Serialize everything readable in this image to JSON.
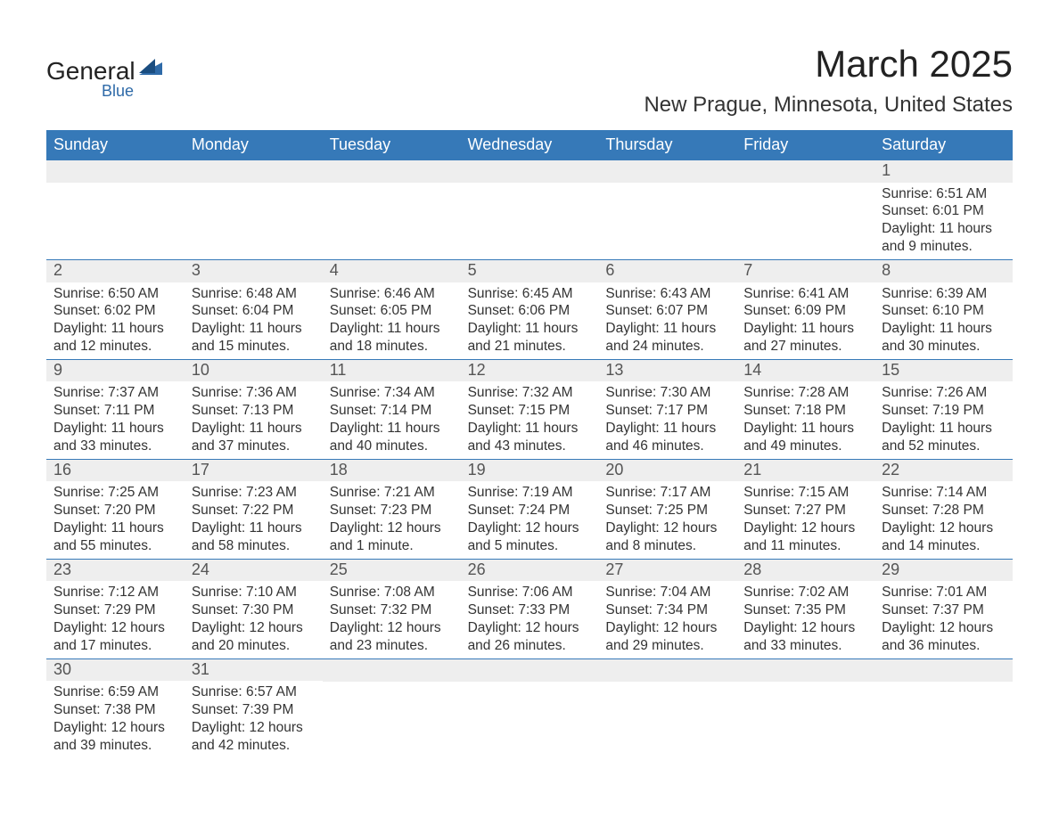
{
  "brand": {
    "name": "General",
    "sub": "Blue"
  },
  "title": "March 2025",
  "location": "New Prague, Minnesota, United States",
  "colors": {
    "header_bg": "#3679b8",
    "header_text": "#ffffff",
    "num_bg": "#eeeeee",
    "border": "#3679b8",
    "text": "#333333",
    "brand_accent": "#2e6aa8"
  },
  "days_of_week": [
    "Sunday",
    "Monday",
    "Tuesday",
    "Wednesday",
    "Thursday",
    "Friday",
    "Saturday"
  ],
  "weeks": [
    [
      null,
      null,
      null,
      null,
      null,
      null,
      {
        "n": "1",
        "sunrise": "Sunrise: 6:51 AM",
        "sunset": "Sunset: 6:01 PM",
        "dl1": "Daylight: 11 hours",
        "dl2": "and 9 minutes."
      }
    ],
    [
      {
        "n": "2",
        "sunrise": "Sunrise: 6:50 AM",
        "sunset": "Sunset: 6:02 PM",
        "dl1": "Daylight: 11 hours",
        "dl2": "and 12 minutes."
      },
      {
        "n": "3",
        "sunrise": "Sunrise: 6:48 AM",
        "sunset": "Sunset: 6:04 PM",
        "dl1": "Daylight: 11 hours",
        "dl2": "and 15 minutes."
      },
      {
        "n": "4",
        "sunrise": "Sunrise: 6:46 AM",
        "sunset": "Sunset: 6:05 PM",
        "dl1": "Daylight: 11 hours",
        "dl2": "and 18 minutes."
      },
      {
        "n": "5",
        "sunrise": "Sunrise: 6:45 AM",
        "sunset": "Sunset: 6:06 PM",
        "dl1": "Daylight: 11 hours",
        "dl2": "and 21 minutes."
      },
      {
        "n": "6",
        "sunrise": "Sunrise: 6:43 AM",
        "sunset": "Sunset: 6:07 PM",
        "dl1": "Daylight: 11 hours",
        "dl2": "and 24 minutes."
      },
      {
        "n": "7",
        "sunrise": "Sunrise: 6:41 AM",
        "sunset": "Sunset: 6:09 PM",
        "dl1": "Daylight: 11 hours",
        "dl2": "and 27 minutes."
      },
      {
        "n": "8",
        "sunrise": "Sunrise: 6:39 AM",
        "sunset": "Sunset: 6:10 PM",
        "dl1": "Daylight: 11 hours",
        "dl2": "and 30 minutes."
      }
    ],
    [
      {
        "n": "9",
        "sunrise": "Sunrise: 7:37 AM",
        "sunset": "Sunset: 7:11 PM",
        "dl1": "Daylight: 11 hours",
        "dl2": "and 33 minutes."
      },
      {
        "n": "10",
        "sunrise": "Sunrise: 7:36 AM",
        "sunset": "Sunset: 7:13 PM",
        "dl1": "Daylight: 11 hours",
        "dl2": "and 37 minutes."
      },
      {
        "n": "11",
        "sunrise": "Sunrise: 7:34 AM",
        "sunset": "Sunset: 7:14 PM",
        "dl1": "Daylight: 11 hours",
        "dl2": "and 40 minutes."
      },
      {
        "n": "12",
        "sunrise": "Sunrise: 7:32 AM",
        "sunset": "Sunset: 7:15 PM",
        "dl1": "Daylight: 11 hours",
        "dl2": "and 43 minutes."
      },
      {
        "n": "13",
        "sunrise": "Sunrise: 7:30 AM",
        "sunset": "Sunset: 7:17 PM",
        "dl1": "Daylight: 11 hours",
        "dl2": "and 46 minutes."
      },
      {
        "n": "14",
        "sunrise": "Sunrise: 7:28 AM",
        "sunset": "Sunset: 7:18 PM",
        "dl1": "Daylight: 11 hours",
        "dl2": "and 49 minutes."
      },
      {
        "n": "15",
        "sunrise": "Sunrise: 7:26 AM",
        "sunset": "Sunset: 7:19 PM",
        "dl1": "Daylight: 11 hours",
        "dl2": "and 52 minutes."
      }
    ],
    [
      {
        "n": "16",
        "sunrise": "Sunrise: 7:25 AM",
        "sunset": "Sunset: 7:20 PM",
        "dl1": "Daylight: 11 hours",
        "dl2": "and 55 minutes."
      },
      {
        "n": "17",
        "sunrise": "Sunrise: 7:23 AM",
        "sunset": "Sunset: 7:22 PM",
        "dl1": "Daylight: 11 hours",
        "dl2": "and 58 minutes."
      },
      {
        "n": "18",
        "sunrise": "Sunrise: 7:21 AM",
        "sunset": "Sunset: 7:23 PM",
        "dl1": "Daylight: 12 hours",
        "dl2": "and 1 minute."
      },
      {
        "n": "19",
        "sunrise": "Sunrise: 7:19 AM",
        "sunset": "Sunset: 7:24 PM",
        "dl1": "Daylight: 12 hours",
        "dl2": "and 5 minutes."
      },
      {
        "n": "20",
        "sunrise": "Sunrise: 7:17 AM",
        "sunset": "Sunset: 7:25 PM",
        "dl1": "Daylight: 12 hours",
        "dl2": "and 8 minutes."
      },
      {
        "n": "21",
        "sunrise": "Sunrise: 7:15 AM",
        "sunset": "Sunset: 7:27 PM",
        "dl1": "Daylight: 12 hours",
        "dl2": "and 11 minutes."
      },
      {
        "n": "22",
        "sunrise": "Sunrise: 7:14 AM",
        "sunset": "Sunset: 7:28 PM",
        "dl1": "Daylight: 12 hours",
        "dl2": "and 14 minutes."
      }
    ],
    [
      {
        "n": "23",
        "sunrise": "Sunrise: 7:12 AM",
        "sunset": "Sunset: 7:29 PM",
        "dl1": "Daylight: 12 hours",
        "dl2": "and 17 minutes."
      },
      {
        "n": "24",
        "sunrise": "Sunrise: 7:10 AM",
        "sunset": "Sunset: 7:30 PM",
        "dl1": "Daylight: 12 hours",
        "dl2": "and 20 minutes."
      },
      {
        "n": "25",
        "sunrise": "Sunrise: 7:08 AM",
        "sunset": "Sunset: 7:32 PM",
        "dl1": "Daylight: 12 hours",
        "dl2": "and 23 minutes."
      },
      {
        "n": "26",
        "sunrise": "Sunrise: 7:06 AM",
        "sunset": "Sunset: 7:33 PM",
        "dl1": "Daylight: 12 hours",
        "dl2": "and 26 minutes."
      },
      {
        "n": "27",
        "sunrise": "Sunrise: 7:04 AM",
        "sunset": "Sunset: 7:34 PM",
        "dl1": "Daylight: 12 hours",
        "dl2": "and 29 minutes."
      },
      {
        "n": "28",
        "sunrise": "Sunrise: 7:02 AM",
        "sunset": "Sunset: 7:35 PM",
        "dl1": "Daylight: 12 hours",
        "dl2": "and 33 minutes."
      },
      {
        "n": "29",
        "sunrise": "Sunrise: 7:01 AM",
        "sunset": "Sunset: 7:37 PM",
        "dl1": "Daylight: 12 hours",
        "dl2": "and 36 minutes."
      }
    ],
    [
      {
        "n": "30",
        "sunrise": "Sunrise: 6:59 AM",
        "sunset": "Sunset: 7:38 PM",
        "dl1": "Daylight: 12 hours",
        "dl2": "and 39 minutes."
      },
      {
        "n": "31",
        "sunrise": "Sunrise: 6:57 AM",
        "sunset": "Sunset: 7:39 PM",
        "dl1": "Daylight: 12 hours",
        "dl2": "and 42 minutes."
      },
      null,
      null,
      null,
      null,
      null
    ]
  ]
}
